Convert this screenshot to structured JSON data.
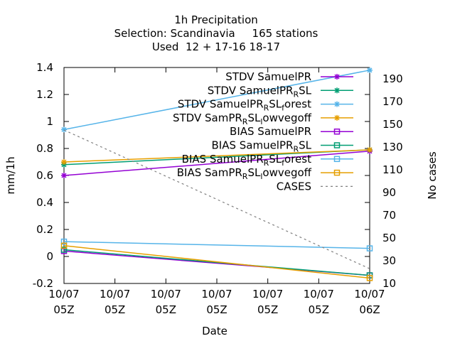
{
  "chart_data": {
    "type": "line",
    "title_lines": [
      "1h Precipitation",
      "Selection: Scandinavia     165 stations",
      "Used  12 + 17-16 18-17"
    ],
    "xlabel": "Date",
    "ylabel": "mm/1h",
    "y2label": "No cases",
    "x_tick_labels": [
      [
        "10/07",
        "05Z"
      ],
      [
        "10/07",
        "05Z"
      ],
      [
        "10/07",
        "05Z"
      ],
      [
        "10/07",
        "05Z"
      ],
      [
        "10/07",
        "05Z"
      ],
      [
        "10/07",
        "05Z"
      ],
      [
        "10/07",
        "06Z"
      ]
    ],
    "ylim": [
      -0.2,
      1.4
    ],
    "y_ticks": [
      "-0.2",
      "0",
      "0.2",
      "0.4",
      "0.6",
      "0.8",
      "1",
      "1.2",
      "1.4"
    ],
    "y2lim": [
      10,
      200
    ],
    "y2_ticks": [
      "10",
      "30",
      "50",
      "70",
      "90",
      "110",
      "130",
      "150",
      "170",
      "190"
    ],
    "grid": false,
    "legend_position": "top-right",
    "series": [
      {
        "name": "STDV SamuelPR",
        "color": "#9400d3",
        "marker": "star",
        "dash": "solid",
        "axis": "y",
        "values": [
          0.6,
          0.78
        ]
      },
      {
        "name": "STDV SamuelPR_R SL",
        "color": "#009e73",
        "marker": "star",
        "dash": "solid",
        "axis": "y",
        "values": [
          0.68,
          0.79
        ]
      },
      {
        "name": "STDV SamuelPR_R SL_forest",
        "color": "#56b4e9",
        "marker": "star",
        "dash": "solid",
        "axis": "y",
        "values": [
          0.94,
          1.38
        ]
      },
      {
        "name": "STDV SamPR_R SL_lowvegoff",
        "color": "#e69f00",
        "marker": "star",
        "dash": "solid",
        "axis": "y",
        "values": [
          0.7,
          0.79
        ]
      },
      {
        "name": "BIAS SamuelPR",
        "color": "#9400d3",
        "marker": "square",
        "dash": "solid",
        "axis": "y",
        "values": [
          0.04,
          -0.14
        ]
      },
      {
        "name": "BIAS SamuelPR_R SL",
        "color": "#009e73",
        "marker": "square",
        "dash": "solid",
        "axis": "y",
        "values": [
          0.05,
          -0.14
        ]
      },
      {
        "name": "BIAS SamuelPR_R SL_forest",
        "color": "#56b4e9",
        "marker": "square",
        "dash": "solid",
        "axis": "y",
        "values": [
          0.11,
          0.06
        ]
      },
      {
        "name": "BIAS SamPR_R SL_lowvegoff",
        "color": "#e69f00",
        "marker": "square",
        "dash": "solid",
        "axis": "y",
        "values": [
          0.08,
          -0.16
        ]
      },
      {
        "name": "CASES",
        "color": "#808080",
        "marker": "none",
        "dash": "dashed",
        "axis": "y2",
        "values": [
          145,
          23
        ]
      }
    ],
    "legend_entries": [
      {
        "parts": [
          {
            "t": "STDV SamuelPR"
          }
        ]
      },
      {
        "parts": [
          {
            "t": "STDV SamuelPR"
          },
          {
            "t": "R",
            "sub": true
          },
          {
            "t": "SL"
          }
        ]
      },
      {
        "parts": [
          {
            "t": "STDV SamuelPR"
          },
          {
            "t": "R",
            "sub": true
          },
          {
            "t": "SL"
          },
          {
            "t": "f",
            "sub": true
          },
          {
            "t": "orest"
          }
        ]
      },
      {
        "parts": [
          {
            "t": "STDV SamPR"
          },
          {
            "t": "R",
            "sub": true
          },
          {
            "t": "SL"
          },
          {
            "t": "l",
            "sub": true
          },
          {
            "t": "owvegoff"
          }
        ]
      },
      {
        "parts": [
          {
            "t": "BIAS SamuelPR"
          }
        ]
      },
      {
        "parts": [
          {
            "t": "BIAS SamuelPR"
          },
          {
            "t": "R",
            "sub": true
          },
          {
            "t": "SL"
          }
        ]
      },
      {
        "parts": [
          {
            "t": "BIAS SamuelPR"
          },
          {
            "t": "R",
            "sub": true
          },
          {
            "t": "SL"
          },
          {
            "t": "f",
            "sub": true
          },
          {
            "t": "orest"
          }
        ]
      },
      {
        "parts": [
          {
            "t": "BIAS SamPR"
          },
          {
            "t": "R",
            "sub": true
          },
          {
            "t": "SL"
          },
          {
            "t": "l",
            "sub": true
          },
          {
            "t": "owvegoff"
          }
        ]
      },
      {
        "parts": [
          {
            "t": "CASES"
          }
        ]
      }
    ]
  }
}
